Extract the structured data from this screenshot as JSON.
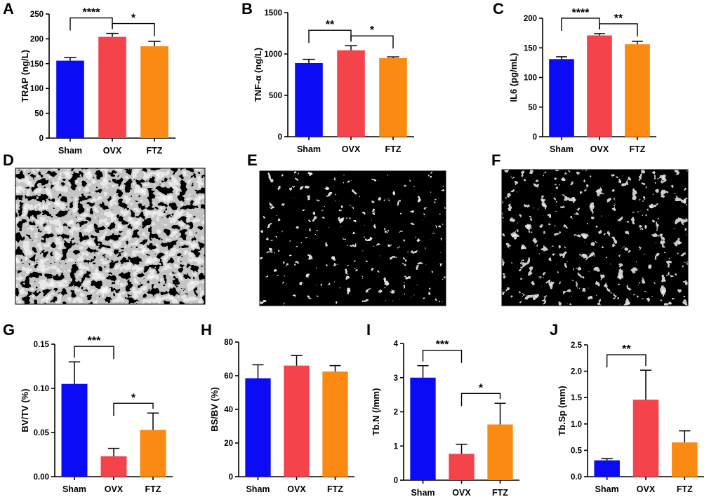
{
  "colors": {
    "Sham": "#0b0bf5",
    "OVX": "#f4434b",
    "FTZ": "#fb8a12"
  },
  "chart_data": [
    {
      "panel": "A",
      "type": "bar",
      "ylabel": "TRAP (ng/L)",
      "categories": [
        "Sham",
        "OVX",
        "FTZ"
      ],
      "values": [
        156,
        204,
        185
      ],
      "errors": [
        6,
        7,
        10
      ],
      "ylim": [
        0,
        250
      ],
      "yticks": [
        0,
        50,
        100,
        150,
        200,
        250
      ],
      "significance": [
        {
          "from": 0,
          "to": 1,
          "label": "****"
        },
        {
          "from": 1,
          "to": 2,
          "label": "*"
        }
      ]
    },
    {
      "panel": "B",
      "type": "bar",
      "ylabel": "TNF-α (ng/L)",
      "categories": [
        "Sham",
        "OVX",
        "FTZ"
      ],
      "values": [
        890,
        1045,
        950
      ],
      "errors": [
        45,
        55,
        15
      ],
      "ylim": [
        0,
        1500
      ],
      "yticks": [
        0,
        500,
        1000,
        1500
      ],
      "significance": [
        {
          "from": 0,
          "to": 1,
          "label": "**"
        },
        {
          "from": 1,
          "to": 2,
          "label": "*"
        }
      ]
    },
    {
      "panel": "C",
      "type": "bar",
      "ylabel": "IL6 (pg/mL)",
      "categories": [
        "Sham",
        "OVX",
        "FTZ"
      ],
      "values": [
        131,
        171,
        156
      ],
      "errors": [
        4,
        3,
        5
      ],
      "ylim": [
        0,
        200
      ],
      "yticks": [
        0,
        50,
        100,
        150,
        200
      ],
      "significance": [
        {
          "from": 0,
          "to": 1,
          "label": "****"
        },
        {
          "from": 1,
          "to": 2,
          "label": "**"
        }
      ]
    },
    {
      "panel": "G",
      "type": "bar",
      "ylabel": "BV/TV (%)",
      "categories": [
        "Sham",
        "OVX",
        "FTZ"
      ],
      "values": [
        0.105,
        0.023,
        0.053
      ],
      "errors": [
        0.025,
        0.009,
        0.019
      ],
      "ylim": [
        0,
        0.15
      ],
      "yticks": [
        0.0,
        0.05,
        0.1,
        0.15
      ],
      "tick_decimals": 2,
      "significance": [
        {
          "from": 0,
          "to": 1,
          "label": "***"
        },
        {
          "from": 1,
          "to": 2,
          "label": "*"
        }
      ]
    },
    {
      "panel": "H",
      "type": "bar",
      "ylabel": "BS/BV (%)",
      "categories": [
        "Sham",
        "OVX",
        "FTZ"
      ],
      "values": [
        58.5,
        66,
        62.5
      ],
      "errors": [
        8,
        6,
        3.5
      ],
      "ylim": [
        0,
        80
      ],
      "yticks": [
        0,
        20,
        40,
        60,
        80
      ],
      "significance": []
    },
    {
      "panel": "I",
      "type": "bar",
      "ylabel": "Tb.N (/mm)",
      "categories": [
        "Sham",
        "OVX",
        "FTZ"
      ],
      "values": [
        3.0,
        0.77,
        1.63
      ],
      "errors": [
        0.35,
        0.28,
        0.62
      ],
      "ylim": [
        0,
        4
      ],
      "yticks": [
        0,
        1,
        2,
        3,
        4
      ],
      "significance": [
        {
          "from": 0,
          "to": 1,
          "label": "***"
        },
        {
          "from": 1,
          "to": 2,
          "label": "*"
        }
      ]
    },
    {
      "panel": "J",
      "type": "bar",
      "ylabel": "Tb.Sp (mm)",
      "categories": [
        "Sham",
        "OVX",
        "FTZ"
      ],
      "values": [
        0.31,
        1.46,
        0.65
      ],
      "errors": [
        0.03,
        0.56,
        0.22
      ],
      "ylim": [
        0,
        2.5
      ],
      "yticks": [
        0.0,
        0.5,
        1.0,
        1.5,
        2.0,
        2.5
      ],
      "tick_decimals": 1,
      "significance": [
        {
          "from": 0,
          "to": 1,
          "label": "**"
        }
      ]
    }
  ],
  "images": [
    {
      "panel": "D",
      "description": "micro-CT 3D reconstruction, Sham"
    },
    {
      "panel": "E",
      "description": "micro-CT 3D reconstruction, OVX"
    },
    {
      "panel": "F",
      "description": "micro-CT 3D reconstruction, FTZ"
    }
  ]
}
